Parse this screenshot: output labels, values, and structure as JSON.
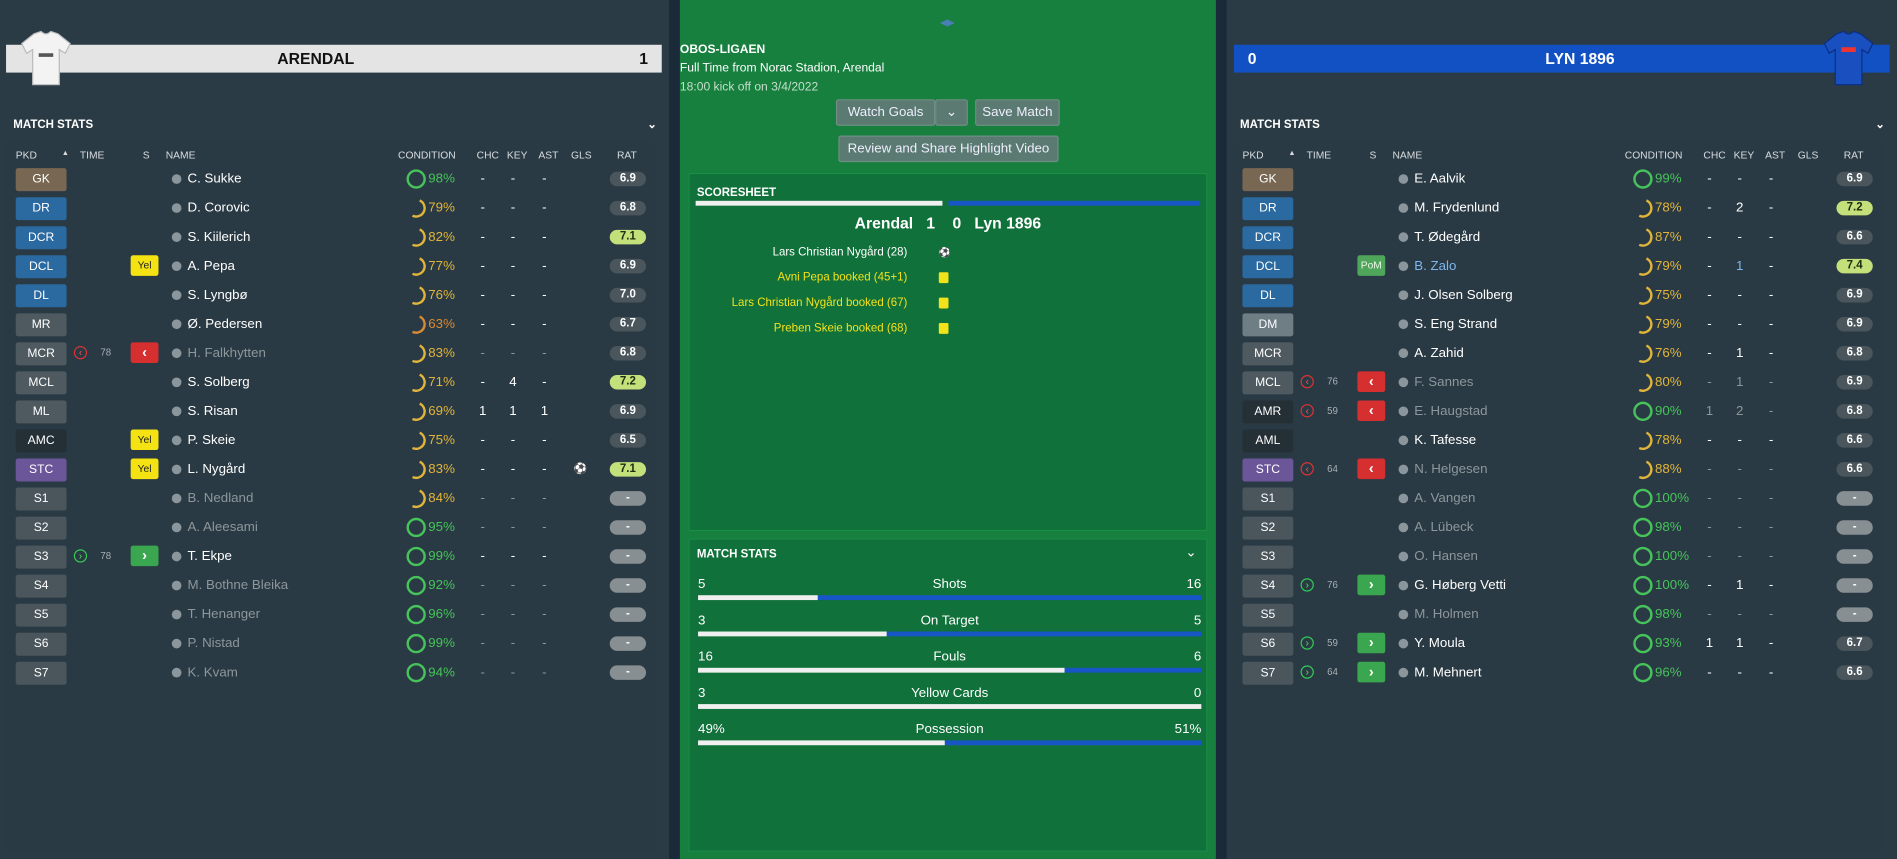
{
  "home": {
    "name": "ARENDAL",
    "score": "1",
    "match_stats_title": "MATCH STATS",
    "collapse_icon": "chevron-down-icon"
  },
  "away": {
    "name": "LYN 1896",
    "score": "0",
    "match_stats_title": "MATCH STATS",
    "collapse_icon": "chevron-down-icon"
  },
  "columns": {
    "pkd": "PKD",
    "sort_icon": "sort-up-icon",
    "time": "TIME",
    "s": "S",
    "name": "NAME",
    "condition": "CONDITION",
    "chc": "CHC",
    "key": "KEY",
    "ast": "AST",
    "gls": "GLS",
    "rat": "RAT"
  },
  "center": {
    "league": "OBOS-LIGAEN",
    "subtitle": "Full Time from Norac Stadion, Arendal",
    "kickoff": "18:00 kick off on 3/4/2022",
    "watch_goals": "Watch Goals",
    "save_match": "Save Match",
    "review": "Review and Share Highlight Video",
    "scoresheet_title": "SCORESHEET",
    "score_line": {
      "home": "Arendal",
      "hs": "1",
      "as": "0",
      "away": "Lyn 1896"
    },
    "events": [
      {
        "text": "Lars Christian Nygård (28)",
        "icon": "goal-ball-icon",
        "color": "#ffffff"
      },
      {
        "text": "Avni Pepa booked (45+1)",
        "icon": "yellow-card-icon",
        "color": "#f2e21c"
      },
      {
        "text": "Lars Christian Nygård booked (67)",
        "icon": "yellow-card-icon",
        "color": "#f2e21c"
      },
      {
        "text": "Preben Skeie booked (68)",
        "icon": "yellow-card-icon",
        "color": "#f2e21c"
      }
    ],
    "stats_title": "MATCH STATS",
    "stats": [
      {
        "label": "Shots",
        "home": "5",
        "away": "16"
      },
      {
        "label": "On Target",
        "home": "3",
        "away": "5"
      },
      {
        "label": "Fouls",
        "home": "16",
        "away": "6"
      },
      {
        "label": "Yellow Cards",
        "home": "3",
        "away": "0"
      },
      {
        "label": "Possession",
        "home": "49%",
        "away": "51%"
      }
    ]
  },
  "colors": {
    "gk": "#786752",
    "def": "#2a6aa0",
    "dm": "#6f7d85",
    "mid": "#4e5a60",
    "att": "#6b569a",
    "sub": "#4a565c",
    "amc_dark": "#252f36",
    "cond_green": "#46c35a",
    "cond_yellow": "#e1b53a",
    "cond_orange": "#d88a35"
  },
  "home_players": [
    {
      "pos": "GK",
      "pc": "gk",
      "name": "C. Sukke",
      "cond": "98%",
      "cc": "g",
      "chc": "-",
      "key": "-",
      "ast": "-",
      "gls": "",
      "rat": "6.9"
    },
    {
      "pos": "DR",
      "pc": "def",
      "name": "D. Corovic",
      "cond": "79%",
      "cc": "y",
      "chc": "-",
      "key": "-",
      "ast": "-",
      "gls": "",
      "rat": "6.8"
    },
    {
      "pos": "DCR",
      "pc": "def",
      "name": "S. Kiilerich",
      "cond": "82%",
      "cc": "y",
      "chc": "-",
      "key": "-",
      "ast": "-",
      "gls": "",
      "rat": "7.1",
      "good": true
    },
    {
      "pos": "DCL",
      "pc": "def",
      "name": "A. Pepa",
      "cond": "77%",
      "cc": "y",
      "chc": "-",
      "key": "-",
      "ast": "-",
      "gls": "",
      "rat": "6.9",
      "card": "Yel"
    },
    {
      "pos": "DL",
      "pc": "def",
      "name": "S. Lyngbø",
      "cond": "76%",
      "cc": "y",
      "chc": "-",
      "key": "-",
      "ast": "-",
      "gls": "",
      "rat": "7.0"
    },
    {
      "pos": "MR",
      "pc": "mid",
      "name": "Ø. Pedersen",
      "cond": "63%",
      "cc": "o",
      "chc": "-",
      "key": "-",
      "ast": "-",
      "gls": "",
      "rat": "6.7"
    },
    {
      "pos": "MCR",
      "pc": "mid",
      "name": "H. Falkhytten",
      "cond": "83%",
      "cc": "y",
      "chc": "-",
      "key": "-",
      "ast": "-",
      "gls": "",
      "rat": "6.8",
      "sub": "out",
      "time": "78",
      "dim": true
    },
    {
      "pos": "MCL",
      "pc": "mid",
      "name": "S. Solberg",
      "cond": "71%",
      "cc": "y",
      "chc": "-",
      "key": "4",
      "ast": "-",
      "gls": "",
      "rat": "7.2",
      "good": true
    },
    {
      "pos": "ML",
      "pc": "mid",
      "name": "S. Risan",
      "cond": "69%",
      "cc": "y",
      "chc": "1",
      "key": "1",
      "ast": "1",
      "gls": "",
      "rat": "6.9"
    },
    {
      "pos": "AMC",
      "pc": "amc",
      "name": "P. Skeie",
      "cond": "75%",
      "cc": "y",
      "chc": "-",
      "key": "-",
      "ast": "-",
      "gls": "",
      "rat": "6.5",
      "card": "Yel"
    },
    {
      "pos": "STC",
      "pc": "att",
      "name": "L. Nygård",
      "cond": "83%",
      "cc": "y",
      "chc": "-",
      "key": "-",
      "ast": "-",
      "gls": "goal",
      "rat": "7.1",
      "good": true,
      "card": "Yel"
    },
    {
      "pos": "S1",
      "pc": "sub",
      "name": "B. Nedland",
      "cond": "84%",
      "cc": "y",
      "chc": "-",
      "key": "-",
      "ast": "-",
      "gls": "",
      "rat": "-",
      "dim": true,
      "light": true
    },
    {
      "pos": "S2",
      "pc": "sub",
      "name": "A. Aleesami",
      "cond": "95%",
      "cc": "g",
      "chc": "-",
      "key": "-",
      "ast": "-",
      "gls": "",
      "rat": "-",
      "dim": true,
      "light": true
    },
    {
      "pos": "S3",
      "pc": "sub",
      "name": "T. Ekpe",
      "cond": "99%",
      "cc": "g",
      "chc": "-",
      "key": "-",
      "ast": "-",
      "gls": "",
      "rat": "-",
      "sub": "in",
      "time": "78",
      "light": true
    },
    {
      "pos": "S4",
      "pc": "sub",
      "name": "M. Bothne Bleika",
      "cond": "92%",
      "cc": "g",
      "chc": "-",
      "key": "-",
      "ast": "-",
      "gls": "",
      "rat": "-",
      "dim": true,
      "light": true
    },
    {
      "pos": "S5",
      "pc": "sub",
      "name": "T. Henanger",
      "cond": "96%",
      "cc": "g",
      "chc": "-",
      "key": "-",
      "ast": "-",
      "gls": "",
      "rat": "-",
      "dim": true,
      "light": true
    },
    {
      "pos": "S6",
      "pc": "sub",
      "name": "P. Nistad",
      "cond": "99%",
      "cc": "g",
      "chc": "-",
      "key": "-",
      "ast": "-",
      "gls": "",
      "rat": "-",
      "dim": true,
      "light": true
    },
    {
      "pos": "S7",
      "pc": "sub",
      "name": "K. Kvam",
      "cond": "94%",
      "cc": "g",
      "chc": "-",
      "key": "-",
      "ast": "-",
      "gls": "",
      "rat": "-",
      "dim": true,
      "light": true
    }
  ],
  "away_players": [
    {
      "pos": "GK",
      "pc": "gk",
      "name": "E. Aalvik",
      "cond": "99%",
      "cc": "g",
      "chc": "-",
      "key": "-",
      "ast": "-",
      "gls": "",
      "rat": "6.9"
    },
    {
      "pos": "DR",
      "pc": "def",
      "name": "M. Frydenlund",
      "cond": "78%",
      "cc": "y",
      "chc": "-",
      "key": "2",
      "ast": "-",
      "gls": "",
      "rat": "7.2",
      "good": true
    },
    {
      "pos": "DCR",
      "pc": "def",
      "name": "T. Ødegård",
      "cond": "87%",
      "cc": "y",
      "chc": "-",
      "key": "-",
      "ast": "-",
      "gls": "",
      "rat": "6.6"
    },
    {
      "pos": "DCL",
      "pc": "def",
      "name": "B. Zalo",
      "cond": "79%",
      "cc": "y",
      "chc": "-",
      "key": "1",
      "ast": "-",
      "gls": "",
      "rat": "7.4",
      "good": true,
      "card": "PoM",
      "pom": true
    },
    {
      "pos": "DL",
      "pc": "def",
      "name": "J. Olsen Solberg",
      "cond": "75%",
      "cc": "y",
      "chc": "-",
      "key": "-",
      "ast": "-",
      "gls": "",
      "rat": "6.9"
    },
    {
      "pos": "DM",
      "pc": "dm",
      "name": "S. Eng Strand",
      "cond": "79%",
      "cc": "y",
      "chc": "-",
      "key": "-",
      "ast": "-",
      "gls": "",
      "rat": "6.9"
    },
    {
      "pos": "MCR",
      "pc": "mid",
      "name": "A. Zahid",
      "cond": "76%",
      "cc": "y",
      "chc": "-",
      "key": "1",
      "ast": "-",
      "gls": "",
      "rat": "6.8"
    },
    {
      "pos": "MCL",
      "pc": "mid",
      "name": "F. Sannes",
      "cond": "80%",
      "cc": "y",
      "chc": "-",
      "key": "1",
      "ast": "-",
      "gls": "",
      "rat": "6.9",
      "sub": "out",
      "time": "76",
      "dim": true
    },
    {
      "pos": "AMR",
      "pc": "amc",
      "name": "E. Haugstad",
      "cond": "90%",
      "cc": "g",
      "chc": "1",
      "key": "2",
      "ast": "-",
      "gls": "",
      "rat": "6.8",
      "sub": "out",
      "time": "59",
      "dim": true
    },
    {
      "pos": "AML",
      "pc": "amc",
      "name": "K. Tafesse",
      "cond": "78%",
      "cc": "y",
      "chc": "-",
      "key": "-",
      "ast": "-",
      "gls": "",
      "rat": "6.6"
    },
    {
      "pos": "STC",
      "pc": "att",
      "name": "N. Helgesen",
      "cond": "88%",
      "cc": "y",
      "chc": "-",
      "key": "-",
      "ast": "-",
      "gls": "",
      "rat": "6.6",
      "sub": "out",
      "time": "64",
      "dim": true
    },
    {
      "pos": "S1",
      "pc": "sub",
      "name": "A. Vangen",
      "cond": "100%",
      "cc": "g",
      "chc": "-",
      "key": "-",
      "ast": "-",
      "gls": "",
      "rat": "-",
      "dim": true,
      "light": true
    },
    {
      "pos": "S2",
      "pc": "sub",
      "name": "A. Lübeck",
      "cond": "98%",
      "cc": "g",
      "chc": "-",
      "key": "-",
      "ast": "-",
      "gls": "",
      "rat": "-",
      "dim": true,
      "light": true
    },
    {
      "pos": "S3",
      "pc": "sub",
      "name": "O. Hansen",
      "cond": "100%",
      "cc": "g",
      "chc": "-",
      "key": "-",
      "ast": "-",
      "gls": "",
      "rat": "-",
      "dim": true,
      "light": true
    },
    {
      "pos": "S4",
      "pc": "sub",
      "name": "G. Høberg Vetti",
      "cond": "100%",
      "cc": "g",
      "chc": "-",
      "key": "1",
      "ast": "-",
      "gls": "",
      "rat": "-",
      "sub": "in",
      "time": "76",
      "light": true
    },
    {
      "pos": "S5",
      "pc": "sub",
      "name": "M. Holmen",
      "cond": "98%",
      "cc": "g",
      "chc": "-",
      "key": "-",
      "ast": "-",
      "gls": "",
      "rat": "-",
      "dim": true,
      "light": true
    },
    {
      "pos": "S6",
      "pc": "sub",
      "name": "Y. Moula",
      "cond": "93%",
      "cc": "g",
      "chc": "1",
      "key": "1",
      "ast": "-",
      "gls": "",
      "rat": "6.7",
      "sub": "in",
      "time": "59"
    },
    {
      "pos": "S7",
      "pc": "sub",
      "name": "M. Mehnert",
      "cond": "96%",
      "cc": "g",
      "chc": "-",
      "key": "-",
      "ast": "-",
      "gls": "",
      "rat": "6.6",
      "sub": "in",
      "time": "64"
    }
  ]
}
